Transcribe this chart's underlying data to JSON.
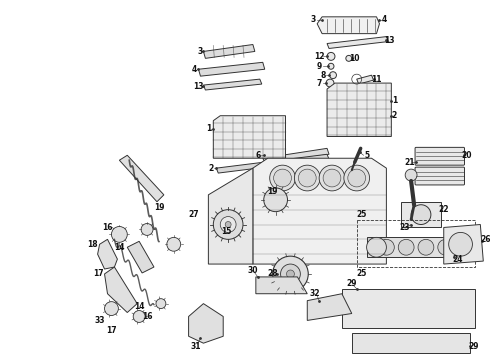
{
  "bg_color": "#ffffff",
  "line_color": "#333333",
  "text_color": "#111111",
  "figsize": [
    4.9,
    3.6
  ],
  "dpi": 100
}
